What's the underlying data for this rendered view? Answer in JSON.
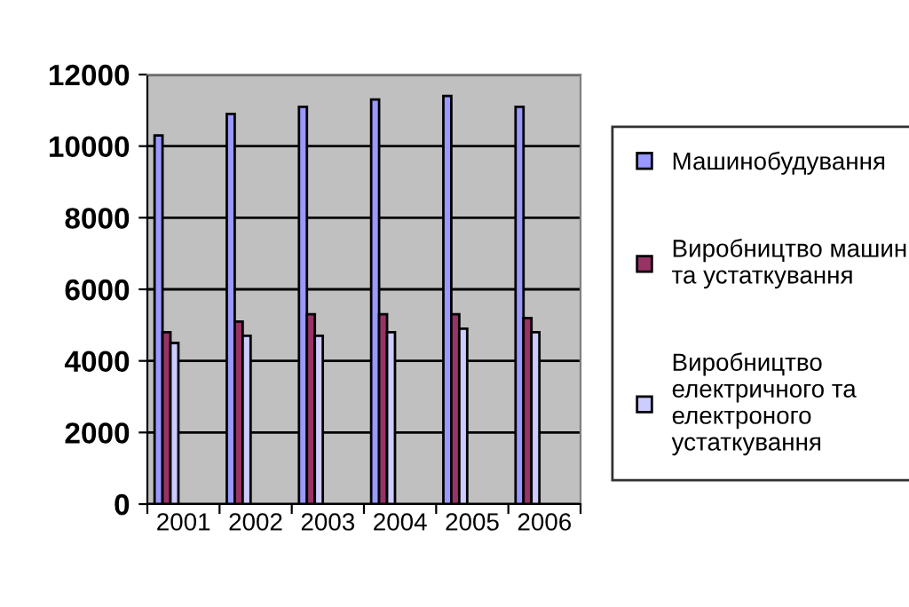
{
  "chart_data": {
    "type": "bar",
    "categories": [
      "2001",
      "2002",
      "2003",
      "2004",
      "2005",
      "2006"
    ],
    "series": [
      {
        "name": "Машинобудування",
        "color": "#9999ff",
        "values": [
          10300,
          10900,
          11100,
          11300,
          11400,
          11100
        ]
      },
      {
        "name": "Виробництво машин\nта устаткування",
        "color": "#993366",
        "values": [
          4800,
          5100,
          5300,
          5300,
          5300,
          5200
        ]
      },
      {
        "name": "Виробництво\nелектричного та\nелектроного\nустаткування",
        "color": "#ccccff",
        "values": [
          4500,
          4700,
          4700,
          4800,
          4900,
          4800
        ]
      }
    ],
    "ylim": [
      0,
      12000
    ],
    "yticks": [
      0,
      2000,
      4000,
      6000,
      8000,
      10000,
      12000
    ],
    "grid": "y",
    "legend": "right"
  }
}
